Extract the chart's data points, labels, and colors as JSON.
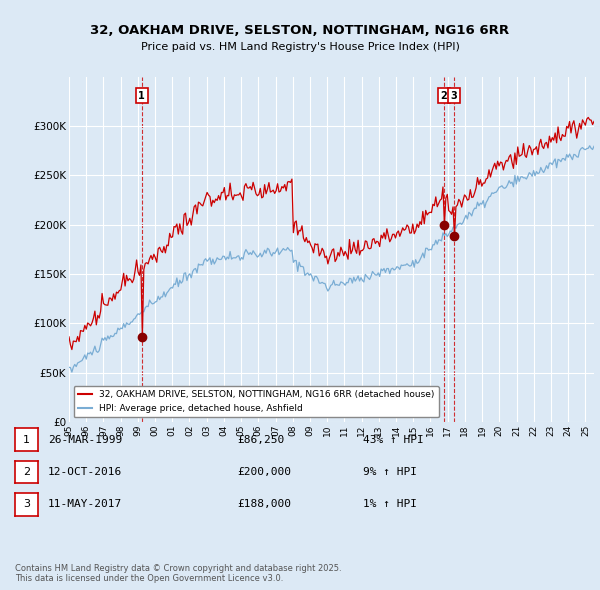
{
  "title_line1": "32, OAKHAM DRIVE, SELSTON, NOTTINGHAM, NG16 6RR",
  "title_line2": "Price paid vs. HM Land Registry's House Price Index (HPI)",
  "ylim": [
    0,
    350000
  ],
  "yticks": [
    0,
    50000,
    100000,
    150000,
    200000,
    250000,
    300000
  ],
  "ytick_labels": [
    "£0",
    "£50K",
    "£100K",
    "£150K",
    "£200K",
    "£250K",
    "£300K"
  ],
  "background_color": "#dce9f5",
  "plot_bg_color": "#dce9f5",
  "red_color": "#cc0000",
  "blue_color": "#7aadd4",
  "legend_label_red": "32, OAKHAM DRIVE, SELSTON, NOTTINGHAM, NG16 6RR (detached house)",
  "legend_label_blue": "HPI: Average price, detached house, Ashfield",
  "transactions": [
    {
      "num": 1,
      "date_x": 1999.23,
      "price": 86250,
      "label": "1"
    },
    {
      "num": 2,
      "date_x": 2016.78,
      "price": 200000,
      "label": "2"
    },
    {
      "num": 3,
      "date_x": 2017.37,
      "price": 188000,
      "label": "3"
    }
  ],
  "transaction_table": [
    {
      "num": "1",
      "date": "26-MAR-1999",
      "price": "£86,250",
      "change": "43% ↑ HPI"
    },
    {
      "num": "2",
      "date": "12-OCT-2016",
      "price": "£200,000",
      "change": "9% ↑ HPI"
    },
    {
      "num": "3",
      "date": "11-MAY-2017",
      "price": "£188,000",
      "change": "1% ↑ HPI"
    }
  ],
  "footer": "Contains HM Land Registry data © Crown copyright and database right 2025.\nThis data is licensed under the Open Government Licence v3.0.",
  "xmin": 1995.0,
  "xmax": 2025.5
}
